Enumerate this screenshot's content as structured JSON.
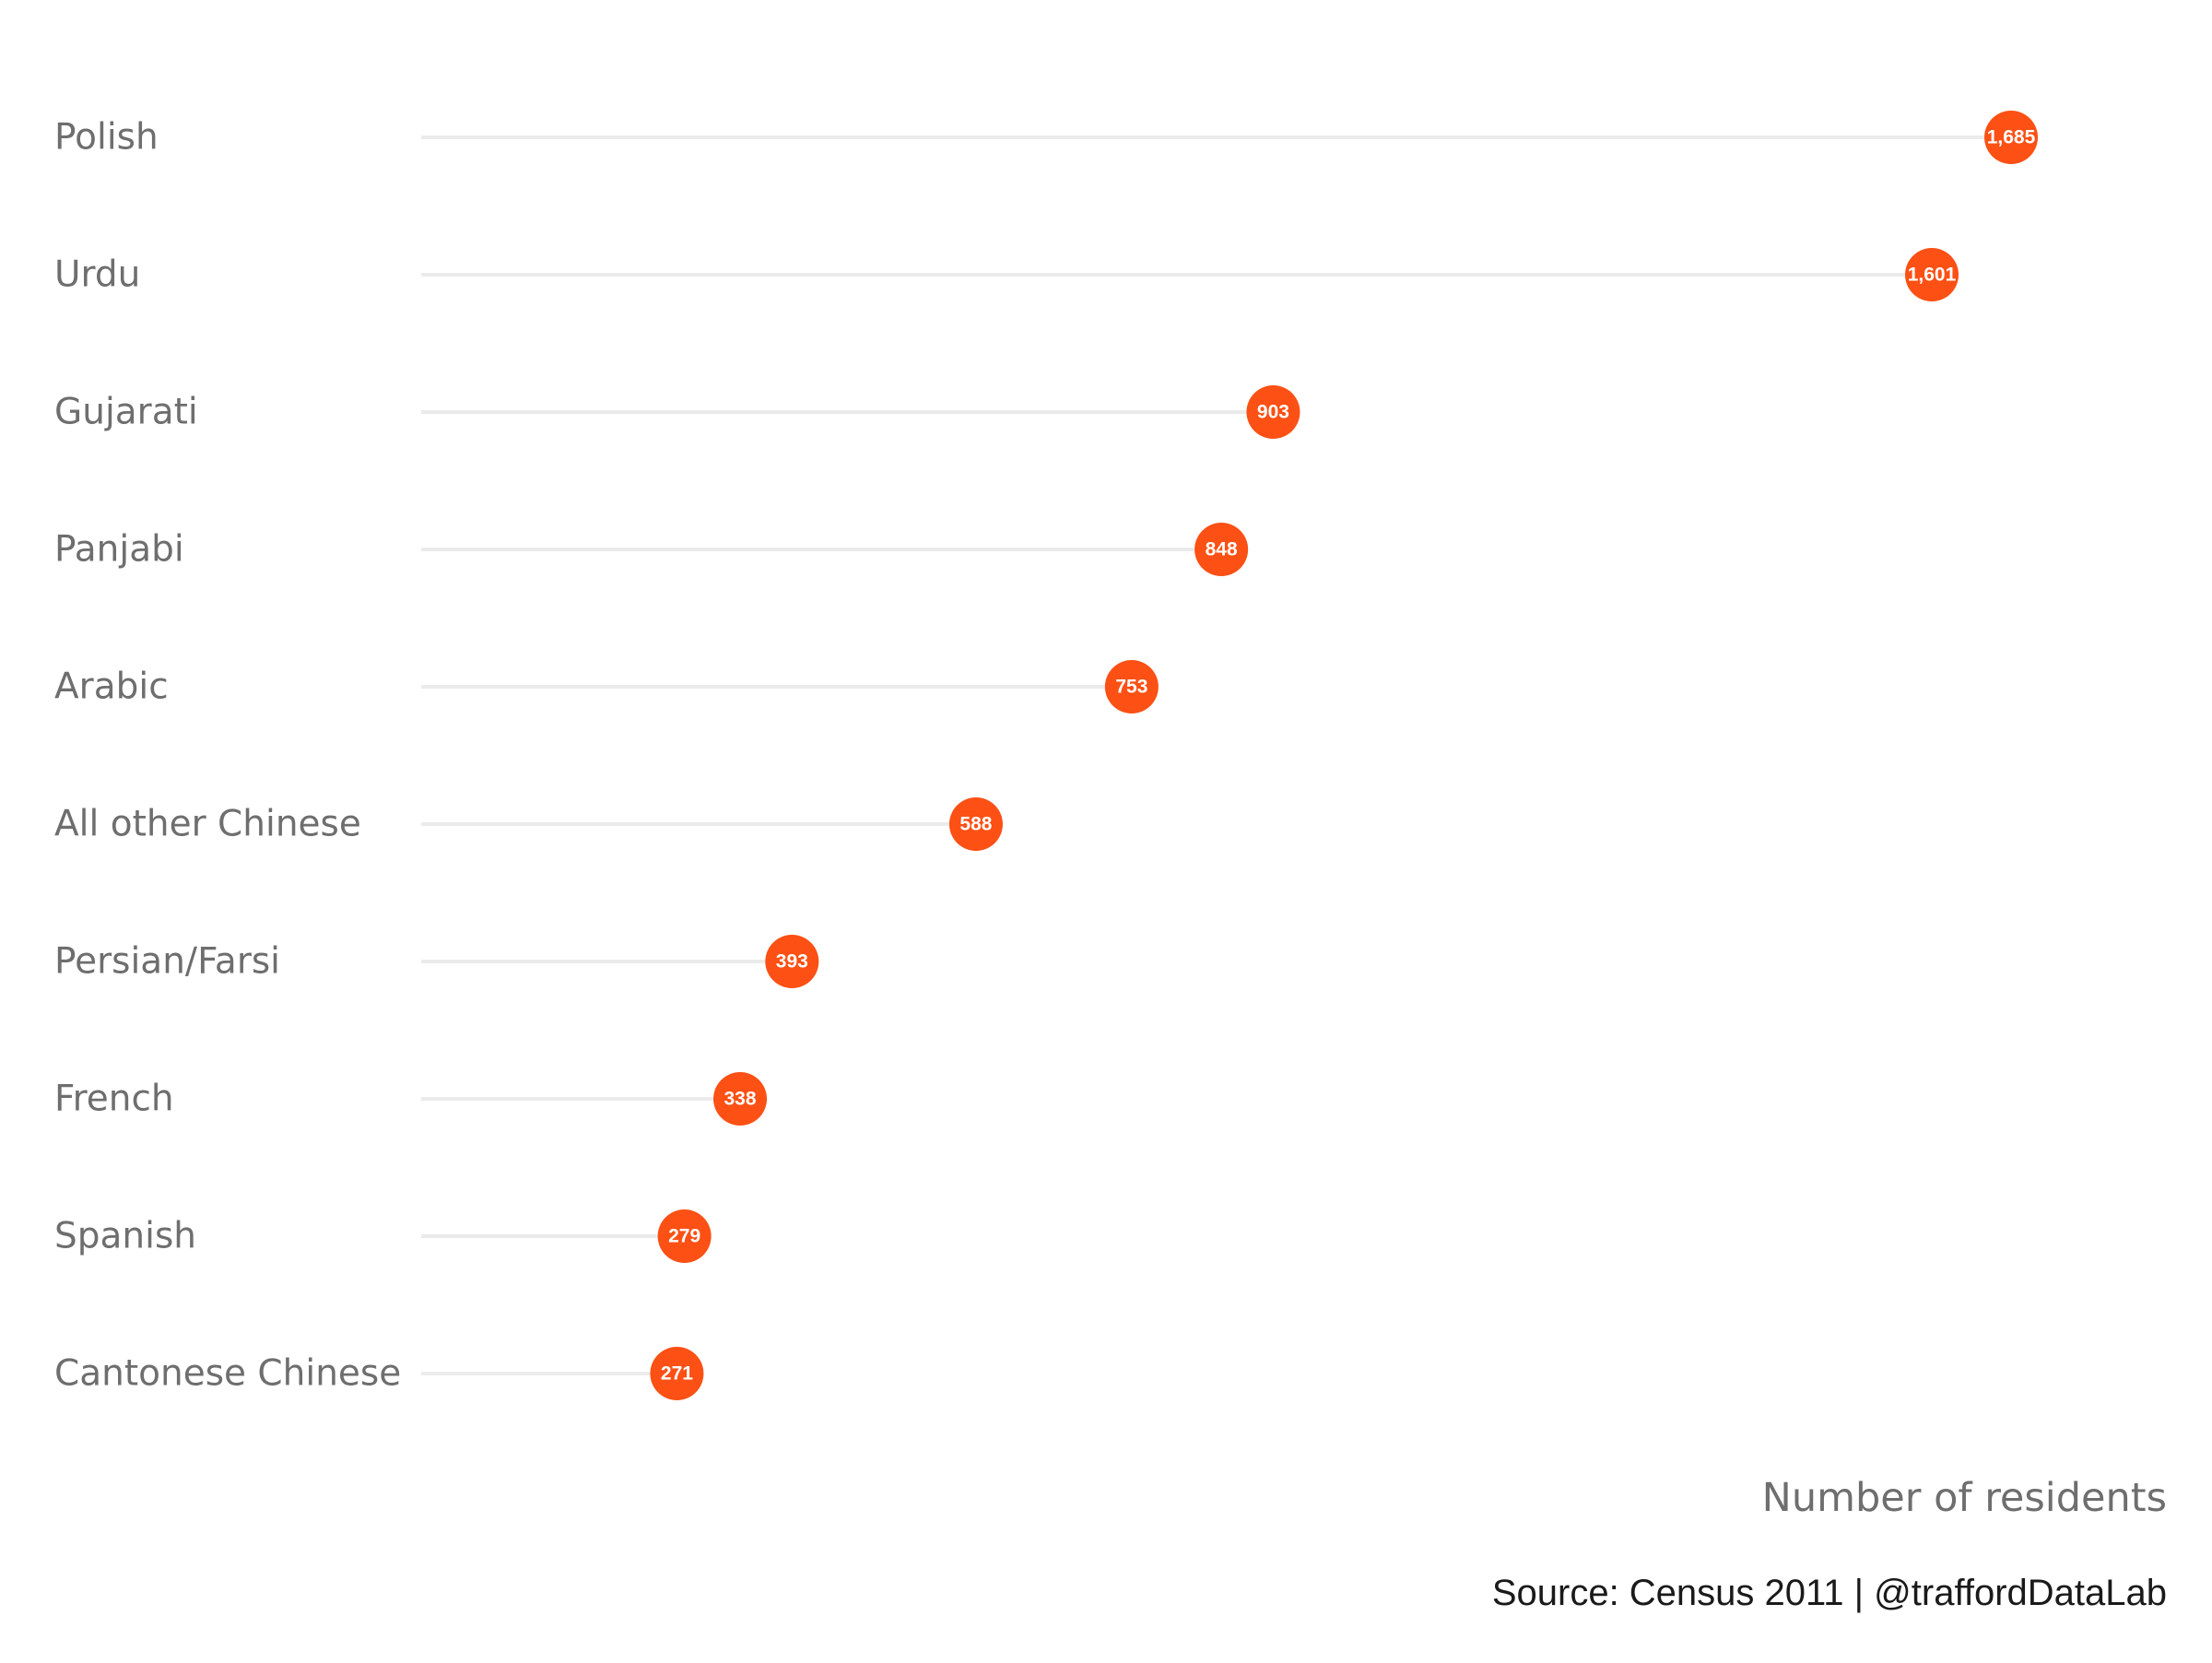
{
  "chart_data": {
    "type": "lollipop",
    "categories": [
      "Polish",
      "Urdu",
      "Gujarati",
      "Panjabi",
      "Arabic",
      "All other Chinese",
      "Persian/Farsi",
      "French",
      "Spanish",
      "Cantonese Chinese"
    ],
    "values": [
      1685,
      1601,
      903,
      848,
      753,
      588,
      393,
      338,
      279,
      271
    ],
    "value_labels": [
      "1,685",
      "1,601",
      "903",
      "848",
      "753",
      "588",
      "393",
      "338",
      "279",
      "271"
    ],
    "xlabel": "Number of residents",
    "xlim": [
      0,
      1685
    ],
    "grid": false,
    "colors": {
      "point": "#fc5014",
      "stem": "#ebebeb",
      "label_text": "#6e6e6e"
    }
  },
  "caption": "Source: Census 2011  |  @traffordDataLab"
}
